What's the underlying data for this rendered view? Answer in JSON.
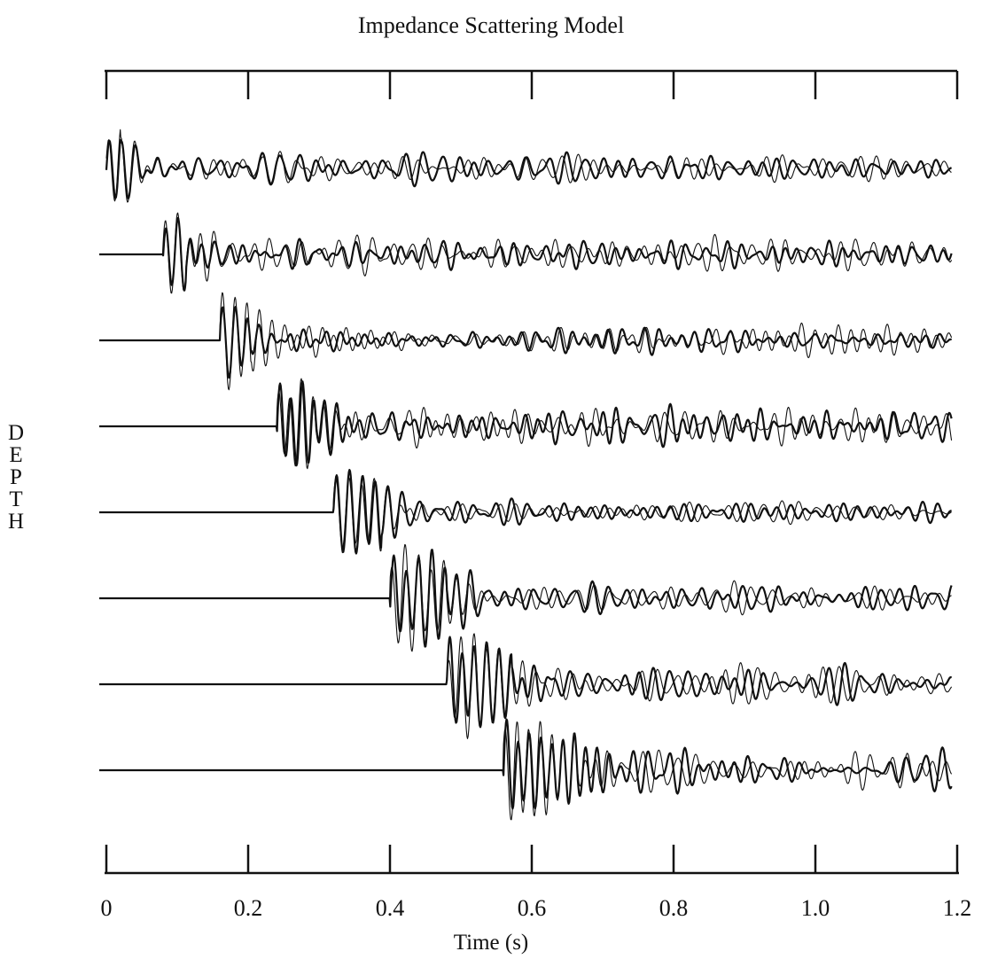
{
  "chart_data": {
    "type": "line",
    "title": "Impedance Scattering Model",
    "xlabel": "Time (s)",
    "ylabel": "DEPTH",
    "xlim": [
      0,
      1.2
    ],
    "x_ticks": [
      "0",
      "0.2",
      "0.4",
      "0.6",
      "0.8",
      "1.0",
      "1.2"
    ],
    "x_tick_values": [
      0,
      0.2,
      0.4,
      0.6,
      0.8,
      1.0,
      1.2
    ],
    "grid": false,
    "legend": "none",
    "traces": [
      {
        "index": 1,
        "onset_s": 0.0,
        "wiggle_seed": 11
      },
      {
        "index": 2,
        "onset_s": 0.08,
        "wiggle_seed": 23
      },
      {
        "index": 3,
        "onset_s": 0.16,
        "wiggle_seed": 37
      },
      {
        "index": 4,
        "onset_s": 0.24,
        "wiggle_seed": 41
      },
      {
        "index": 5,
        "onset_s": 0.32,
        "wiggle_seed": 53
      },
      {
        "index": 6,
        "onset_s": 0.4,
        "wiggle_seed": 67
      },
      {
        "index": 7,
        "onset_s": 0.48,
        "wiggle_seed": 79
      },
      {
        "index": 8,
        "onset_s": 0.56,
        "wiggle_seed": 83
      }
    ],
    "line_color": "#111111"
  }
}
